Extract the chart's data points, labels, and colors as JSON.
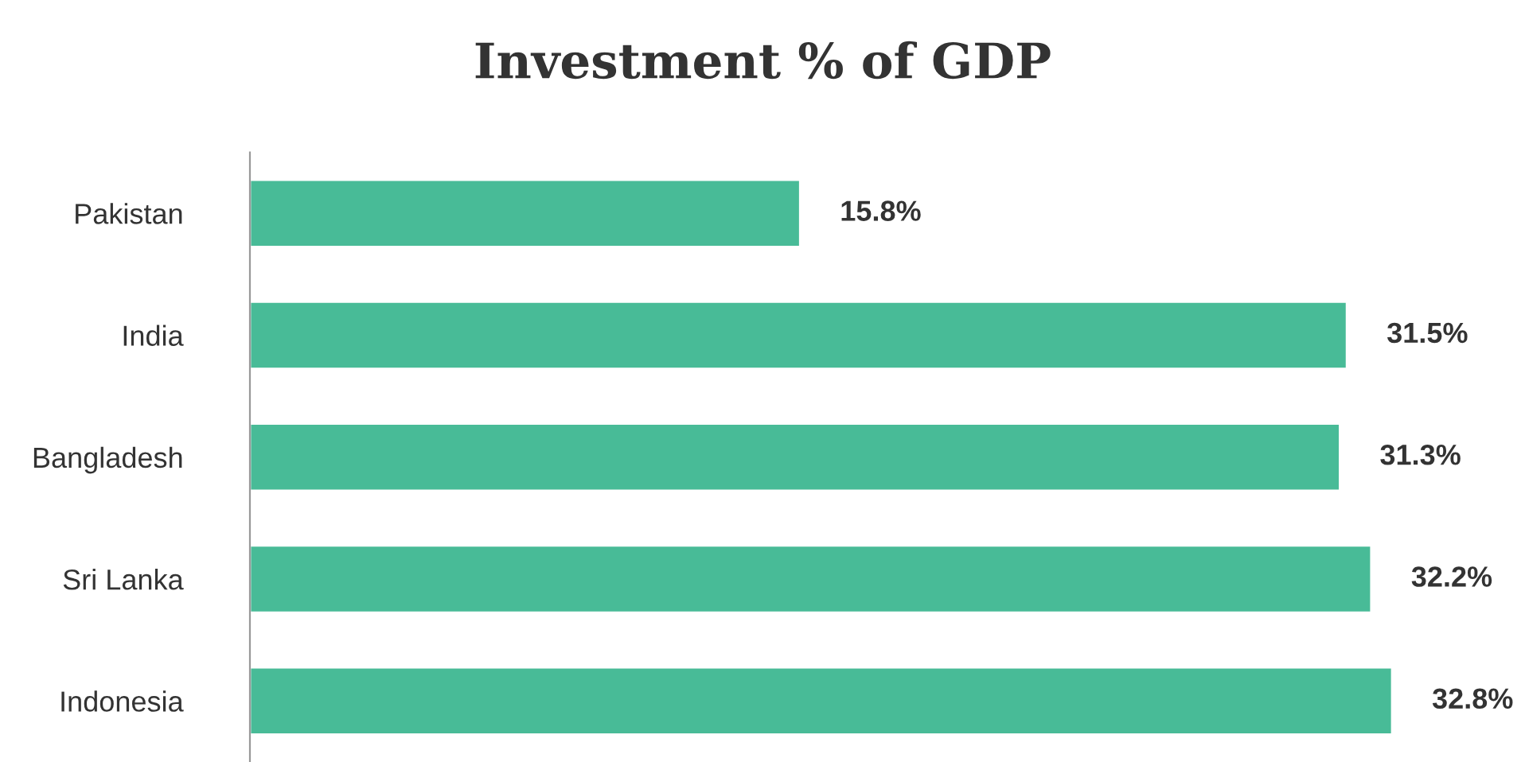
{
  "chart_data": {
    "type": "bar",
    "orientation": "horizontal",
    "title": "Investment % of GDP",
    "categories": [
      "Pakistan",
      "India",
      "Bangladesh",
      "Sri Lanka",
      "Indonesia"
    ],
    "values": [
      15.8,
      31.5,
      31.3,
      32.2,
      32.8
    ],
    "color": "#48bb97",
    "value_labels": [
      "15.8%",
      "31.5%",
      "31.3%",
      "32.2%",
      "32.8%"
    ],
    "grid": false,
    "legend": false
  }
}
